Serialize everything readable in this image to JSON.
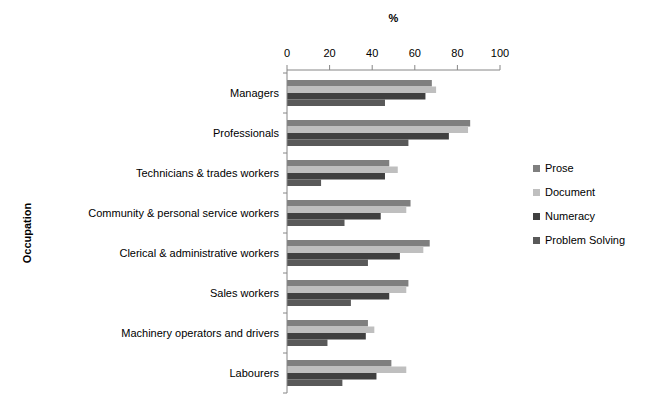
{
  "chart_data": {
    "type": "bar",
    "orientation": "horizontal",
    "x_label": "%",
    "y_label": "Occupation",
    "categories": [
      "Managers",
      "Professionals",
      "Technicians & trades workers",
      "Community  & personal service workers",
      "Clerical & administrative  workers",
      "Sales workers",
      "Machinery operators and drivers",
      "Labourers"
    ],
    "series": [
      {
        "name": "Prose",
        "color": "#7f7f7f",
        "values": [
          68,
          86,
          48,
          58,
          67,
          57,
          38,
          49
        ]
      },
      {
        "name": "Document",
        "color": "#bfbfbf",
        "values": [
          70,
          85,
          52,
          56,
          64,
          56,
          41,
          56
        ]
      },
      {
        "name": "Numeracy",
        "color": "#404040",
        "values": [
          65,
          76,
          46,
          44,
          53,
          48,
          37,
          42
        ]
      },
      {
        "name": "Problem Solving",
        "color": "#595959",
        "values": [
          46,
          57,
          16,
          27,
          38,
          30,
          19,
          26
        ]
      }
    ],
    "xlim": [
      0,
      100
    ],
    "xticks": [
      0,
      20,
      40,
      60,
      80,
      100
    ],
    "grid": false,
    "legend": "right"
  }
}
